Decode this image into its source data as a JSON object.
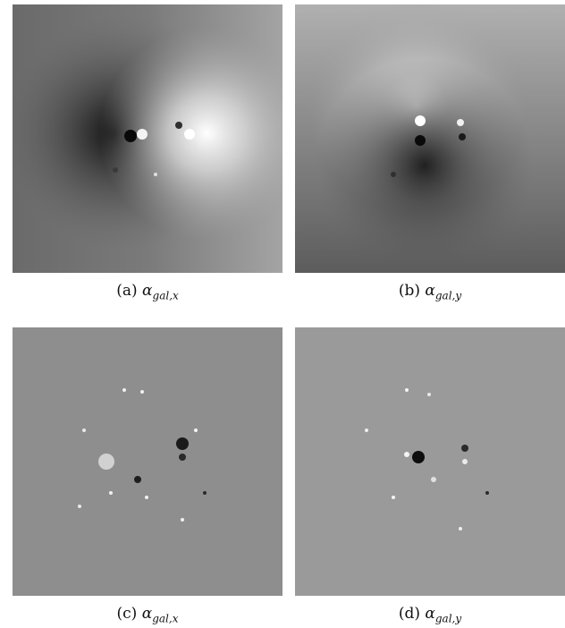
{
  "figure": {
    "panels": [
      {
        "id": "a",
        "label": "(a)",
        "symbol": "α",
        "subscript": "gal,x",
        "colormap": "grayscale",
        "bg": "#8a8a8a"
      },
      {
        "id": "b",
        "label": "(b)",
        "symbol": "α",
        "subscript": "gal,y",
        "colormap": "grayscale",
        "bg": "#7c7c7c"
      },
      {
        "id": "c",
        "label": "(c)",
        "symbol": "α",
        "subscript": "gal,x",
        "colormap": "grayscale",
        "bg": "#8c8c8c"
      },
      {
        "id": "d",
        "label": "(d)",
        "symbol": "α",
        "subscript": "gal,y",
        "colormap": "grayscale",
        "bg": "#999999"
      }
    ]
  }
}
